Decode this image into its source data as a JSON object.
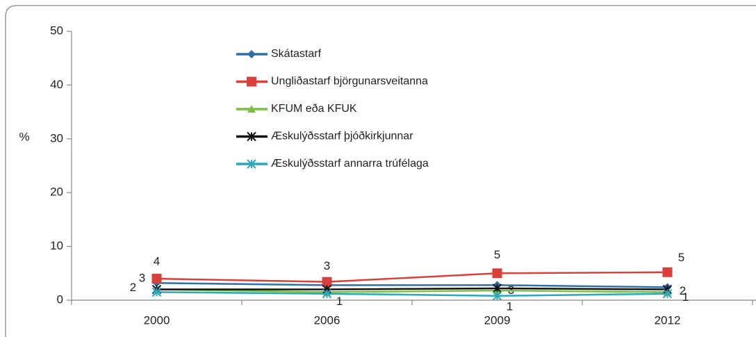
{
  "chart_data": {
    "type": "line",
    "y_label": "%",
    "categories": [
      "2000",
      "2006",
      "2009",
      "2012"
    ],
    "ylim": [
      0,
      50
    ],
    "yticks": [
      0,
      10,
      20,
      30,
      40,
      50
    ],
    "series": [
      {
        "name": "Skátastarf",
        "color": "#2e6fa8",
        "marker": "diamond",
        "values": [
          3.2,
          2.8,
          2.8,
          2.4
        ],
        "value_labels": [
          "3",
          null,
          "3",
          "2"
        ]
      },
      {
        "name": "Ungliðastarf björgunarsveitanna",
        "color": "#d9403a",
        "marker": "square",
        "values": [
          4,
          3.4,
          5,
          5.2
        ],
        "value_labels": [
          "4",
          "3",
          "5",
          "5"
        ]
      },
      {
        "name": "KFUM eða KFUK",
        "color": "#7ac143",
        "marker": "triangle",
        "values": [
          2,
          1.5,
          1.8,
          1.5
        ]
      },
      {
        "name": "Æskulýðsstarf þjóðkirkjunnar",
        "color": "#111111",
        "marker": "star",
        "values": [
          2,
          2,
          2.2,
          2
        ],
        "value_labels": [
          "2",
          null,
          null,
          null
        ]
      },
      {
        "name": "Æskulýðsstarf annarra trúfélaga",
        "color": "#2aa7b8",
        "marker": "asterisk",
        "values": [
          1.5,
          1.2,
          0.8,
          1.2
        ],
        "value_labels": [
          null,
          "1",
          "1",
          "1"
        ]
      }
    ]
  }
}
